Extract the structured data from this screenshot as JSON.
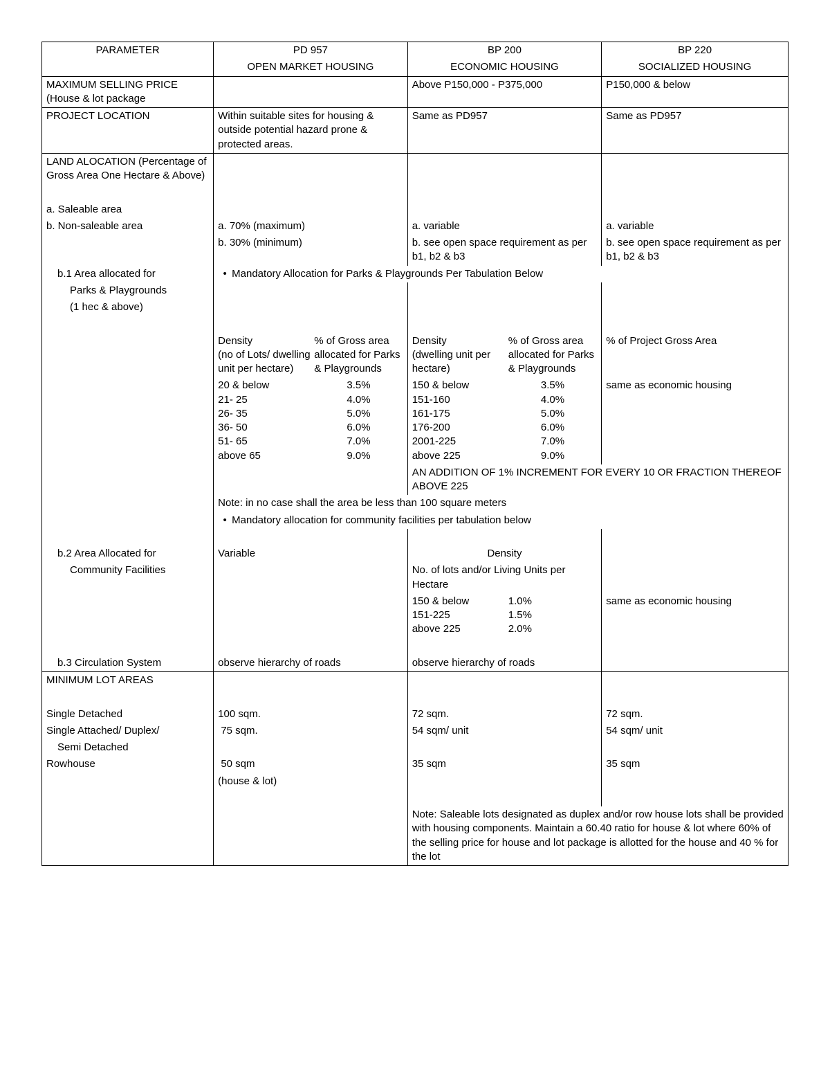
{
  "headers": {
    "param": "PARAMETER",
    "pd957_top": "PD 957",
    "pd957_sub": "OPEN MARKET HOUSING",
    "bp200_top": "BP 200",
    "bp200_sub": "ECONOMIC HOUSING",
    "bp220_top": "BP 220",
    "bp220_sub": "SOCIALIZED HOUSING"
  },
  "max_price": {
    "label": "MAXIMUM SELLING PRICE (House & lot package",
    "pd957": "",
    "bp200": "Above P150,000 - P375,000",
    "bp220": "P150,000 & below"
  },
  "location": {
    "label": "PROJECT LOCATION",
    "pd957": "Within suitable sites for housing & outside potential hazard prone & protected areas.",
    "bp200": "Same as PD957",
    "bp220": "Same as PD957"
  },
  "land_alloc": {
    "label": "LAND ALOCATION (Percentage of Gross Area One Hectare & Above)",
    "a": "a.   Saleable area",
    "b": "b.   Non-saleable area",
    "pd957_a": "a. 70% (maximum)",
    "pd957_b": "b. 30% (minimum)",
    "bp200_a": "a. variable",
    "bp200_b": "b. see open space requirement as per b1, b2 & b3",
    "bp220_a": "a. variable",
    "bp220_b": "b. see open space requirement as per b1, b2 & b3"
  },
  "b1": {
    "label1": "b.1 Area allocated for",
    "label2": "Parks & Playgrounds",
    "label3": "(1 hec  & above)",
    "bullet": "Mandatory Allocation for Parks & Playgrounds Per Tabulation Below"
  },
  "density": {
    "pd957_h1": "Density",
    "pd957_h1b": "(no of Lots/ dwelling unit per hectare)",
    "pd957_h2": "% of Gross area allocated for Parks & Playgrounds",
    "bp200_h1": "Density",
    "bp200_h1b": "(dwelling unit per hectare)",
    "bp200_h2": "% of Gross area allocated for Parks & Playgrounds",
    "bp220_h": "% of Project Gross Area",
    "pd957_rows": [
      [
        "20 & below",
        "3.5%"
      ],
      [
        "21- 25",
        "4.0%"
      ],
      [
        "26- 35",
        "5.0%"
      ],
      [
        "36- 50",
        "6.0%"
      ],
      [
        "51- 65",
        "7.0%"
      ],
      [
        "above 65",
        "9.0%"
      ]
    ],
    "bp200_rows": [
      [
        "150 & below",
        "3.5%"
      ],
      [
        "151-160",
        "4.0%"
      ],
      [
        "161-175",
        "5.0%"
      ],
      [
        "176-200",
        "6.0%"
      ],
      [
        "2001-225",
        "7.0%"
      ],
      [
        "above 225",
        "9.0%"
      ]
    ],
    "bp220_note": "same as economic housing",
    "addition": "AN ADDITION OF 1% INCREMENT FOR EVERY 10 OR FRACTION THEREOF ABOVE 225",
    "note100": "Note: in no case shall the area be less than 100 square meters",
    "bullet": "Mandatory allocation for community facilities per tabulation below"
  },
  "b2": {
    "label1": "b.2 Area Allocated for",
    "label2": "Community Facilities",
    "pd957": "Variable",
    "bp200_h1": "Density",
    "bp200_h2": "No. of lots and/or Living Units per Hectare",
    "bp200_rows": [
      [
        "150 & below",
        "1.0%"
      ],
      [
        "151-225",
        "1.5%"
      ],
      [
        "above 225",
        "2.0%"
      ]
    ],
    "bp220": "same as economic housing"
  },
  "b3": {
    "label": "b.3 Circulation System",
    "pd957": "observe hierarchy of roads",
    "bp200": "observe hierarchy of roads"
  },
  "minlot": {
    "label": "MINIMUM LOT AREAS",
    "r1": "Single Detached",
    "r2": "Single Attached/ Duplex/",
    "r2b": "Semi Detached",
    "r3": "Rowhouse",
    "pd957_r1": "100 sqm.",
    "pd957_r2": " 75 sqm.",
    "pd957_r3": " 50 sqm",
    "pd957_r3b": "(house & lot)",
    "bp200_r1": "72 sqm.",
    "bp200_r2": "54 sqm/ unit",
    "bp200_r3": "35 sqm",
    "bp220_r1": "72 sqm.",
    "bp220_r2": "54 sqm/ unit",
    "bp220_r3": "35 sqm",
    "note": "Note: Saleable lots designated as duplex and/or row house lots shall be provided with housing components. Maintain a 60.40 ratio for house & lot where 60% of the selling price for house and lot package is allotted for the house and 40 % for the lot"
  }
}
